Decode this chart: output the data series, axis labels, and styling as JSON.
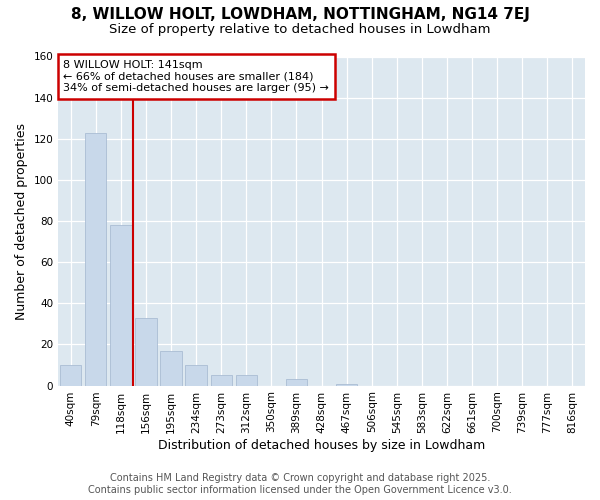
{
  "title": "8, WILLOW HOLT, LOWDHAM, NOTTINGHAM, NG14 7EJ",
  "subtitle": "Size of property relative to detached houses in Lowdham",
  "xlabel": "Distribution of detached houses by size in Lowdham",
  "ylabel": "Number of detached properties",
  "categories": [
    "40sqm",
    "79sqm",
    "118sqm",
    "156sqm",
    "195sqm",
    "234sqm",
    "273sqm",
    "312sqm",
    "350sqm",
    "389sqm",
    "428sqm",
    "467sqm",
    "506sqm",
    "545sqm",
    "583sqm",
    "622sqm",
    "661sqm",
    "700sqm",
    "739sqm",
    "777sqm",
    "816sqm"
  ],
  "values": [
    10,
    123,
    78,
    33,
    17,
    10,
    5,
    5,
    0,
    3,
    0,
    1,
    0,
    0,
    0,
    0,
    0,
    0,
    0,
    0,
    0
  ],
  "bar_color": "#c8d8ea",
  "bar_edge_color": "#aabdd4",
  "property_label": "8 WILLOW HOLT: 141sqm",
  "annotation_line1": "← 66% of detached houses are smaller (184)",
  "annotation_line2": "34% of semi-detached houses are larger (95) →",
  "vline_color": "#cc0000",
  "vline_x": 2.5,
  "annotation_box_color": "#cc0000",
  "footer_line1": "Contains HM Land Registry data © Crown copyright and database right 2025.",
  "footer_line2": "Contains public sector information licensed under the Open Government Licence v3.0.",
  "bg_color": "#ffffff",
  "plot_bg_color": "#dde8f0",
  "ylim": [
    0,
    160
  ],
  "yticks": [
    0,
    20,
    40,
    60,
    80,
    100,
    120,
    140,
    160
  ],
  "title_fontsize": 11,
  "subtitle_fontsize": 9.5,
  "axis_label_fontsize": 9,
  "tick_fontsize": 7.5,
  "footer_fontsize": 7
}
